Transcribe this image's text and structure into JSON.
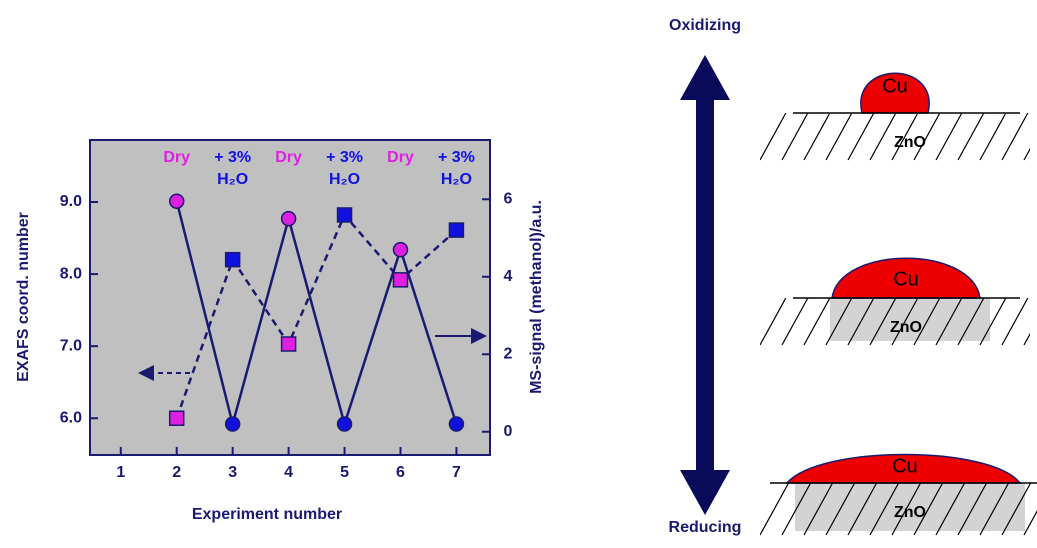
{
  "chart_data": {
    "type": "line",
    "x_label": "Experiment number",
    "y_label": "EXAFS coord. number",
    "y2_label": "MS-signal (methanol)/a.u.",
    "x": [
      2,
      3,
      4,
      5,
      6,
      7
    ],
    "xlim": [
      0.45,
      7.6
    ],
    "xticks": [
      1,
      2,
      3,
      4,
      5,
      6,
      7
    ],
    "ylim": [
      5.49,
      9.86
    ],
    "yticks": [
      {
        "value": 6,
        "label": "6.0"
      },
      {
        "value": 7,
        "label": "7.0"
      },
      {
        "value": 8,
        "label": "8.0"
      },
      {
        "value": 9,
        "label": "9.0"
      }
    ],
    "y2lim": [
      -0.6,
      7.53
    ],
    "y2ticks": [
      0,
      2,
      4,
      6
    ],
    "series": [
      {
        "marker": "square",
        "dashed": true,
        "color": "#1a1a70",
        "point_colors": [
          "#e020e0",
          "#1010e0",
          "#e020e0",
          "#1010e0",
          "#e020e0",
          "#1010e0"
        ],
        "values": [
          6.0,
          8.2,
          7.03,
          8.82,
          7.92,
          8.61
        ]
      },
      {
        "marker": "circle",
        "dashed": false,
        "axis": "y2",
        "color": "#1a1a70",
        "point_colors": [
          "#e020e0",
          "#1010e0",
          "#e020e0",
          "#1010e0",
          "#e020e0",
          "#1010e0"
        ],
        "values": [
          5.95,
          0.2,
          5.5,
          0.2,
          4.7,
          0.2
        ]
      }
    ],
    "annotations": [
      {
        "x": 2,
        "lines": [
          "Dry"
        ],
        "color": "#e020e0"
      },
      {
        "x": 3,
        "lines": [
          "+ 3%",
          "H₂O"
        ],
        "color": "#1010e0"
      },
      {
        "x": 4,
        "lines": [
          "Dry"
        ],
        "color": "#e020e0"
      },
      {
        "x": 5,
        "lines": [
          "+ 3%",
          "H₂O"
        ],
        "color": "#1010e0"
      },
      {
        "x": 6,
        "lines": [
          "Dry"
        ],
        "color": "#e020e0"
      },
      {
        "x": 7,
        "lines": [
          "+ 3%",
          "H₂O"
        ],
        "color": "#1010e0"
      }
    ]
  },
  "diagram": {
    "top_label": "Oxidizing",
    "bottom_label": "Reducing",
    "particles": [
      {
        "metal": "Cu",
        "support": "ZnO"
      },
      {
        "metal": "Cu",
        "support": "ZnO"
      },
      {
        "metal": "Cu",
        "support": "ZnO"
      }
    ]
  }
}
